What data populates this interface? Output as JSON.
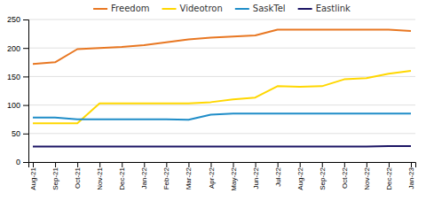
{
  "chart_data": {
    "type": "line",
    "categories": [
      "Aug-21",
      "Sep-21",
      "Oct-21",
      "Nov-21",
      "Dec-21",
      "Jan-22",
      "Feb-22",
      "Mar-22",
      "Apr-22",
      "May-22",
      "Jun-22",
      "Jul-22",
      "Aug-22",
      "Sep-22",
      "Oct-22",
      "Nov-22",
      "Dec-22",
      "Jan-23"
    ],
    "series": [
      {
        "name": "Freedom",
        "color": "#E87722",
        "values": [
          172,
          175,
          198,
          200,
          202,
          205,
          210,
          215,
          218,
          220,
          222,
          232,
          232,
          232,
          232,
          232,
          232,
          230
        ]
      },
      {
        "name": "Videotron",
        "color": "#FFD700",
        "values": [
          68,
          68,
          68,
          103,
          103,
          103,
          103,
          103,
          105,
          110,
          113,
          133,
          132,
          133,
          145,
          147,
          155,
          160
        ]
      },
      {
        "name": "SaskTel",
        "color": "#1F8DC8",
        "values": [
          78,
          78,
          75,
          75,
          75,
          75,
          75,
          74,
          83,
          85,
          85,
          85,
          85,
          85,
          85,
          85,
          85,
          85
        ]
      },
      {
        "name": "Eastlink",
        "color": "#1B1464",
        "values": [
          27,
          27,
          27,
          27,
          27,
          27,
          27,
          27,
          27,
          27,
          27,
          27,
          27,
          27,
          27,
          27,
          28,
          28
        ]
      }
    ],
    "ylim": [
      0,
      250
    ],
    "yticks": [
      0,
      50,
      100,
      150,
      200,
      250
    ],
    "grid": true,
    "legend": "top"
  }
}
